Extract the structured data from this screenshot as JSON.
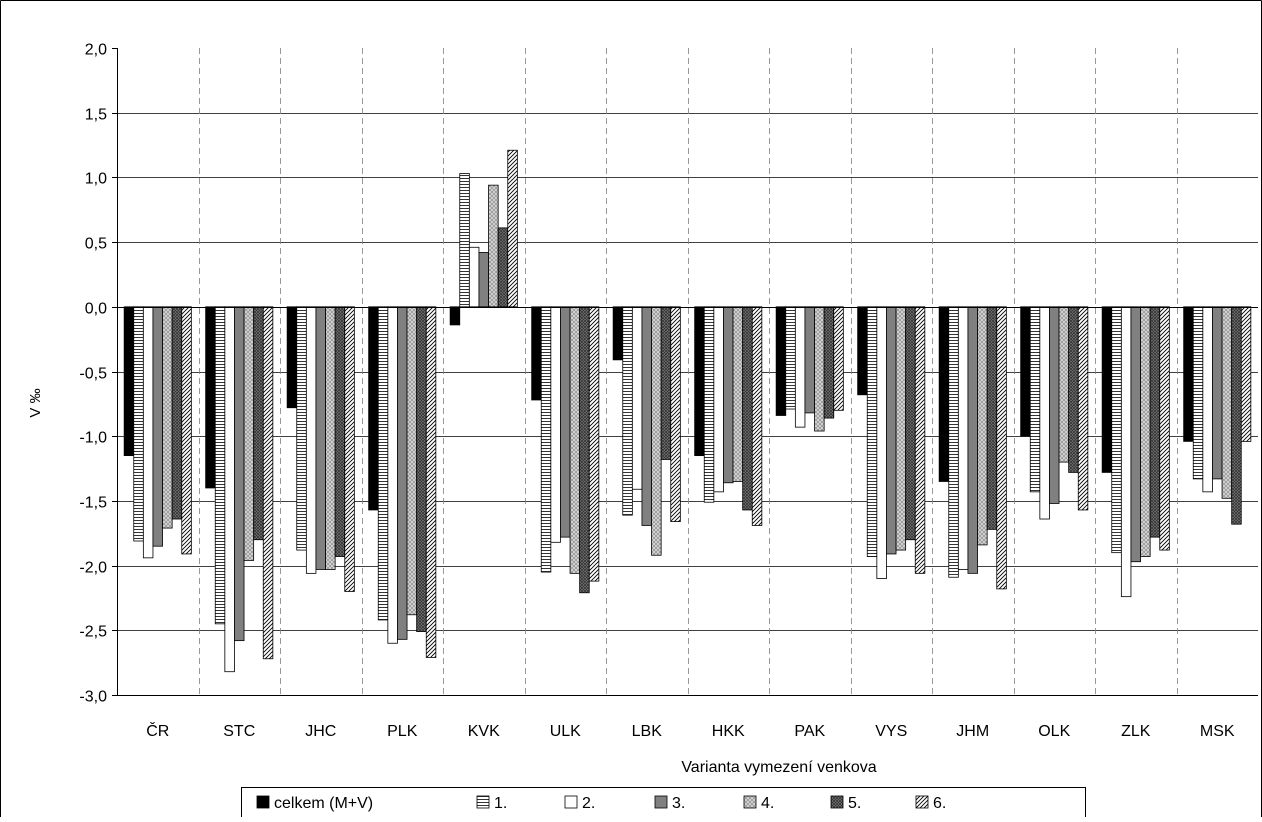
{
  "chart_data": {
    "type": "bar",
    "title": "",
    "xlabel": "Varianta vymezení venkova",
    "ylabel": "V ‰",
    "ylim": [
      -3.0,
      2.0
    ],
    "ytick_step": 0.5,
    "ytick_labels": [
      "-3,0",
      "-2,5",
      "-2,0",
      "-1,5",
      "-1,0",
      "-0,5",
      "0,0",
      "0,5",
      "1,0",
      "1,5",
      "2,0"
    ],
    "grid": true,
    "legend_position": "bottom",
    "categories": [
      "ČR",
      "STC",
      "JHC",
      "PLK",
      "KVK",
      "ULK",
      "LBK",
      "HKK",
      "PAK",
      "VYS",
      "JHM",
      "OLK",
      "ZLK",
      "MSK"
    ],
    "series": [
      {
        "name": "celkem (M+V)",
        "pattern": "solid-black",
        "values": [
          -1.15,
          -1.4,
          -0.78,
          -1.57,
          -0.14,
          -0.72,
          -0.41,
          -1.15,
          -0.84,
          -0.68,
          -1.35,
          -1.0,
          -1.28,
          -1.04
        ]
      },
      {
        "name": "1.",
        "pattern": "horizontal-lines",
        "values": [
          -1.81,
          -2.45,
          -1.88,
          -2.42,
          1.03,
          -2.05,
          -1.61,
          -1.51,
          -0.79,
          -1.93,
          -2.09,
          -1.43,
          -1.9,
          -1.33
        ]
      },
      {
        "name": "2.",
        "pattern": "white",
        "values": [
          -1.94,
          -2.82,
          -2.06,
          -2.6,
          0.46,
          -1.82,
          -1.41,
          -1.43,
          -0.93,
          -2.1,
          -2.03,
          -1.64,
          -2.24,
          -1.43
        ]
      },
      {
        "name": "3.",
        "pattern": "solid-gray",
        "values": [
          -1.85,
          -2.58,
          -2.03,
          -2.57,
          0.42,
          -1.78,
          -1.69,
          -1.36,
          -0.82,
          -1.91,
          -2.06,
          -1.52,
          -1.97,
          -1.33
        ]
      },
      {
        "name": "4.",
        "pattern": "light-crosshatch",
        "values": [
          -1.71,
          -1.96,
          -2.03,
          -2.38,
          0.94,
          -2.06,
          -1.92,
          -1.35,
          -0.96,
          -1.88,
          -1.84,
          -1.2,
          -1.93,
          -1.48
        ]
      },
      {
        "name": "5.",
        "pattern": "dark-crosshatch",
        "values": [
          -1.64,
          -1.8,
          -1.93,
          -2.51,
          0.61,
          -2.21,
          -1.18,
          -1.57,
          -0.86,
          -1.8,
          -1.72,
          -1.28,
          -1.78,
          -1.68
        ]
      },
      {
        "name": "6.",
        "pattern": "diagonal-lines",
        "values": [
          -1.91,
          -2.72,
          -2.2,
          -2.71,
          1.21,
          -2.12,
          -1.66,
          -1.69,
          -0.8,
          -2.06,
          -2.18,
          -1.57,
          -1.88,
          -1.04
        ]
      }
    ]
  }
}
